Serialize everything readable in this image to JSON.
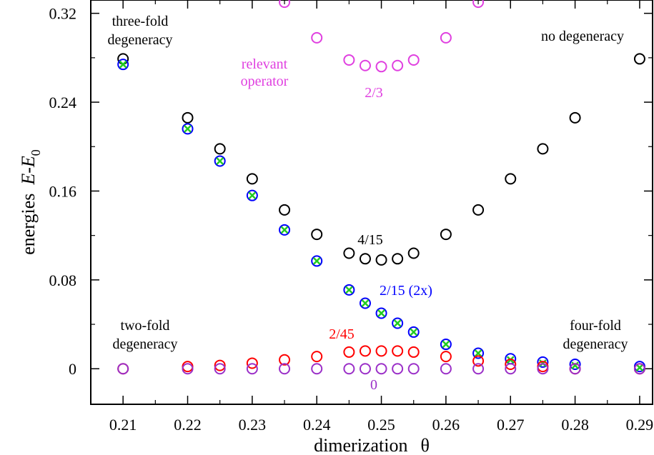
{
  "chart_data": {
    "type": "scatter",
    "xlabel": "dimerization",
    "xlabel_symbol": "θ",
    "ylabel_prefix": "energies",
    "ylabel_var": "E",
    "ylabel_minus": "-",
    "ylabel_sub_var": "E",
    "ylabel_subscript": "0",
    "xlim": [
      0.205,
      0.292
    ],
    "ylim": [
      -0.032,
      0.332
    ],
    "x_ticks": [
      0.21,
      0.22,
      0.23,
      0.24,
      0.25,
      0.26,
      0.27,
      0.28,
      0.29
    ],
    "x_tick_labels": [
      "0.21",
      "0.22",
      "0.23",
      "0.24",
      "0.25",
      "0.26",
      "0.27",
      "0.28",
      "0.29"
    ],
    "y_ticks": [
      0,
      0.08,
      0.16,
      0.24,
      0.32
    ],
    "y_tick_labels": [
      "0",
      "0.08",
      "0.16",
      "0.24",
      "0.32"
    ],
    "grid": false,
    "colors": {
      "black": "#000000",
      "magenta": "#e040e0",
      "blue": "#0000ff",
      "red": "#ff0000",
      "purple": "#9b30c8",
      "green": "#22cc22"
    },
    "series": [
      {
        "marker": "circle",
        "color": "#000000",
        "x": [
          0.21,
          0.22,
          0.225,
          0.23,
          0.235,
          0.24,
          0.245,
          0.2475,
          0.25,
          0.2525,
          0.255,
          0.26,
          0.265,
          0.27,
          0.275,
          0.28,
          0.29
        ],
        "y": [
          0.279,
          0.226,
          0.198,
          0.171,
          0.143,
          0.121,
          0.104,
          0.099,
          0.098,
          0.099,
          0.104,
          0.121,
          0.143,
          0.171,
          0.198,
          0.226,
          0.279
        ]
      },
      {
        "marker": "circle",
        "color": "#e040e0",
        "x": [
          0.235,
          0.24,
          0.245,
          0.2475,
          0.25,
          0.2525,
          0.255,
          0.26,
          0.265
        ],
        "y": [
          0.33,
          0.298,
          0.278,
          0.273,
          0.272,
          0.273,
          0.278,
          0.298,
          0.33
        ]
      },
      {
        "marker": "circle",
        "color": "#0000ff",
        "x": [
          0.21,
          0.22,
          0.225,
          0.23,
          0.235,
          0.24,
          0.245,
          0.2475,
          0.25,
          0.2525,
          0.255,
          0.26,
          0.265,
          0.27,
          0.275,
          0.28,
          0.29
        ],
        "y": [
          0.274,
          0.216,
          0.187,
          0.156,
          0.125,
          0.097,
          0.071,
          0.059,
          0.05,
          0.041,
          0.033,
          0.022,
          0.014,
          0.009,
          0.006,
          0.004,
          0.002
        ]
      },
      {
        "marker": "x",
        "color": "#22cc22",
        "x": [
          0.21,
          0.22,
          0.225,
          0.23,
          0.235,
          0.24,
          0.245,
          0.2475,
          0.25,
          0.2525,
          0.255,
          0.26,
          0.265,
          0.27,
          0.275,
          0.28,
          0.29
        ],
        "y": [
          0.274,
          0.216,
          0.187,
          0.156,
          0.125,
          0.097,
          0.071,
          0.059,
          0.05,
          0.041,
          0.033,
          0.022,
          0.014,
          0.008,
          0.005,
          0.003,
          0.001
        ]
      },
      {
        "marker": "circle",
        "color": "#ff0000",
        "x": [
          0.21,
          0.22,
          0.225,
          0.23,
          0.235,
          0.24,
          0.245,
          0.2475,
          0.25,
          0.2525,
          0.255,
          0.26,
          0.265,
          0.27,
          0.275,
          0.28,
          0.29
        ],
        "y": [
          0.0,
          0.002,
          0.003,
          0.005,
          0.008,
          0.011,
          0.015,
          0.016,
          0.016,
          0.016,
          0.015,
          0.011,
          0.007,
          0.004,
          0.002,
          0.0,
          0.0
        ]
      },
      {
        "marker": "circle",
        "color": "#9b30c8",
        "x": [
          0.21,
          0.22,
          0.225,
          0.23,
          0.235,
          0.24,
          0.245,
          0.2475,
          0.25,
          0.2525,
          0.255,
          0.26,
          0.265,
          0.27,
          0.275,
          0.28,
          0.29
        ],
        "y": [
          0,
          0,
          0,
          0,
          0,
          0,
          0,
          0,
          0,
          0,
          0,
          0,
          0,
          0,
          0,
          0,
          0
        ]
      }
    ],
    "annotations": [
      {
        "lines": [
          "three-fold",
          "degeneracy"
        ],
        "color": "#000000"
      },
      {
        "lines": [
          "relevant",
          "operator"
        ],
        "color": "#e040e0"
      },
      {
        "lines": [
          "2/3"
        ],
        "color": "#e040e0"
      },
      {
        "lines": [
          "no degeneracy"
        ],
        "color": "#000000"
      },
      {
        "lines": [
          "4/15"
        ],
        "color": "#000000"
      },
      {
        "lines": [
          "2/15 (2x)"
        ],
        "color": "#0000ff"
      },
      {
        "lines": [
          "two-fold",
          "degeneracy"
        ],
        "color": "#000000"
      },
      {
        "lines": [
          "2/45"
        ],
        "color": "#ff0000"
      },
      {
        "lines": [
          "four-fold",
          "degeneracy"
        ],
        "color": "#000000"
      },
      {
        "lines": [
          "0"
        ],
        "color": "#9b30c8"
      }
    ]
  }
}
